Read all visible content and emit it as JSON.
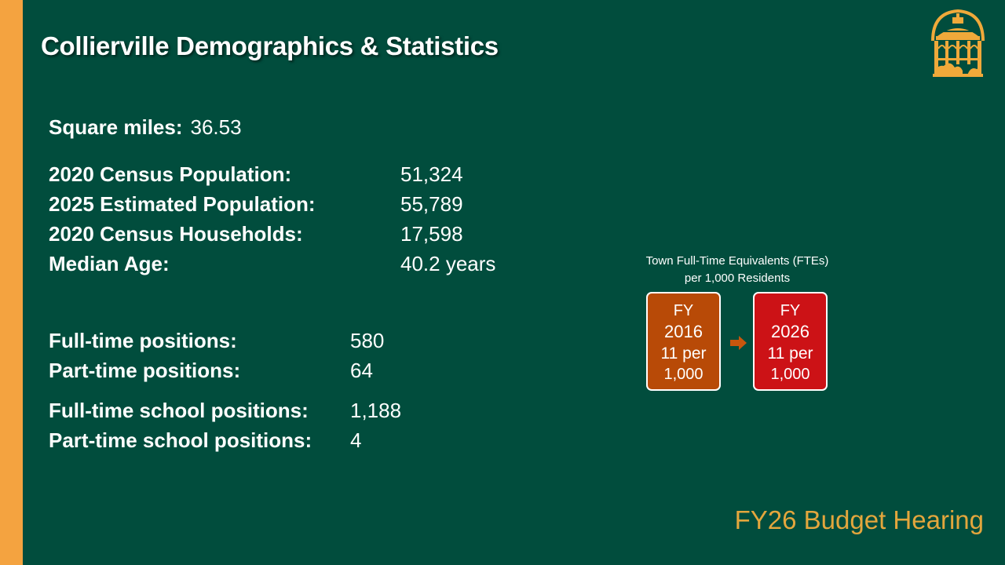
{
  "slide": {
    "title": "Collierville Demographics & Statistics",
    "footer": "FY26 Budget Hearing"
  },
  "stats": {
    "square_miles": {
      "label": "Square miles:",
      "value": "36.53"
    },
    "census_population": {
      "label": "2020 Census Population:",
      "value": "51,324"
    },
    "estimated_population": {
      "label": "2025 Estimated Population:",
      "value": "55,789"
    },
    "census_households": {
      "label": "2020 Census Households:",
      "value": "17,598"
    },
    "median_age": {
      "label": "Median Age:",
      "value": "40.2 years"
    },
    "full_time_positions": {
      "label": "Full-time positions:",
      "value": "580"
    },
    "part_time_positions": {
      "label": "Part-time positions:",
      "value": "64"
    },
    "full_time_school_positions": {
      "label": "Full-time school positions:",
      "value": "1,188"
    },
    "part_time_school_positions": {
      "label": "Part-time school positions:",
      "value": "4"
    }
  },
  "fte": {
    "title_line1": "Town Full-Time Equivalents (FTEs)",
    "title_line2": "per 1,000 Residents",
    "boxes": [
      {
        "fy": "FY",
        "year": "2016",
        "rate": "11 per",
        "per": "1,000",
        "color": "#b84a07"
      },
      {
        "fy": "FY",
        "year": "2026",
        "rate": "11 per",
        "per": "1,000",
        "color": "#cc1216"
      }
    ],
    "arrow_color": "#c8560d"
  },
  "colors": {
    "background": "#014d3d",
    "accent_bar": "#f4a340",
    "logo_gold": "#f0a93a",
    "footer_text": "#e3a63d"
  },
  "logo": {
    "icon": "gazebo-logo-icon"
  }
}
